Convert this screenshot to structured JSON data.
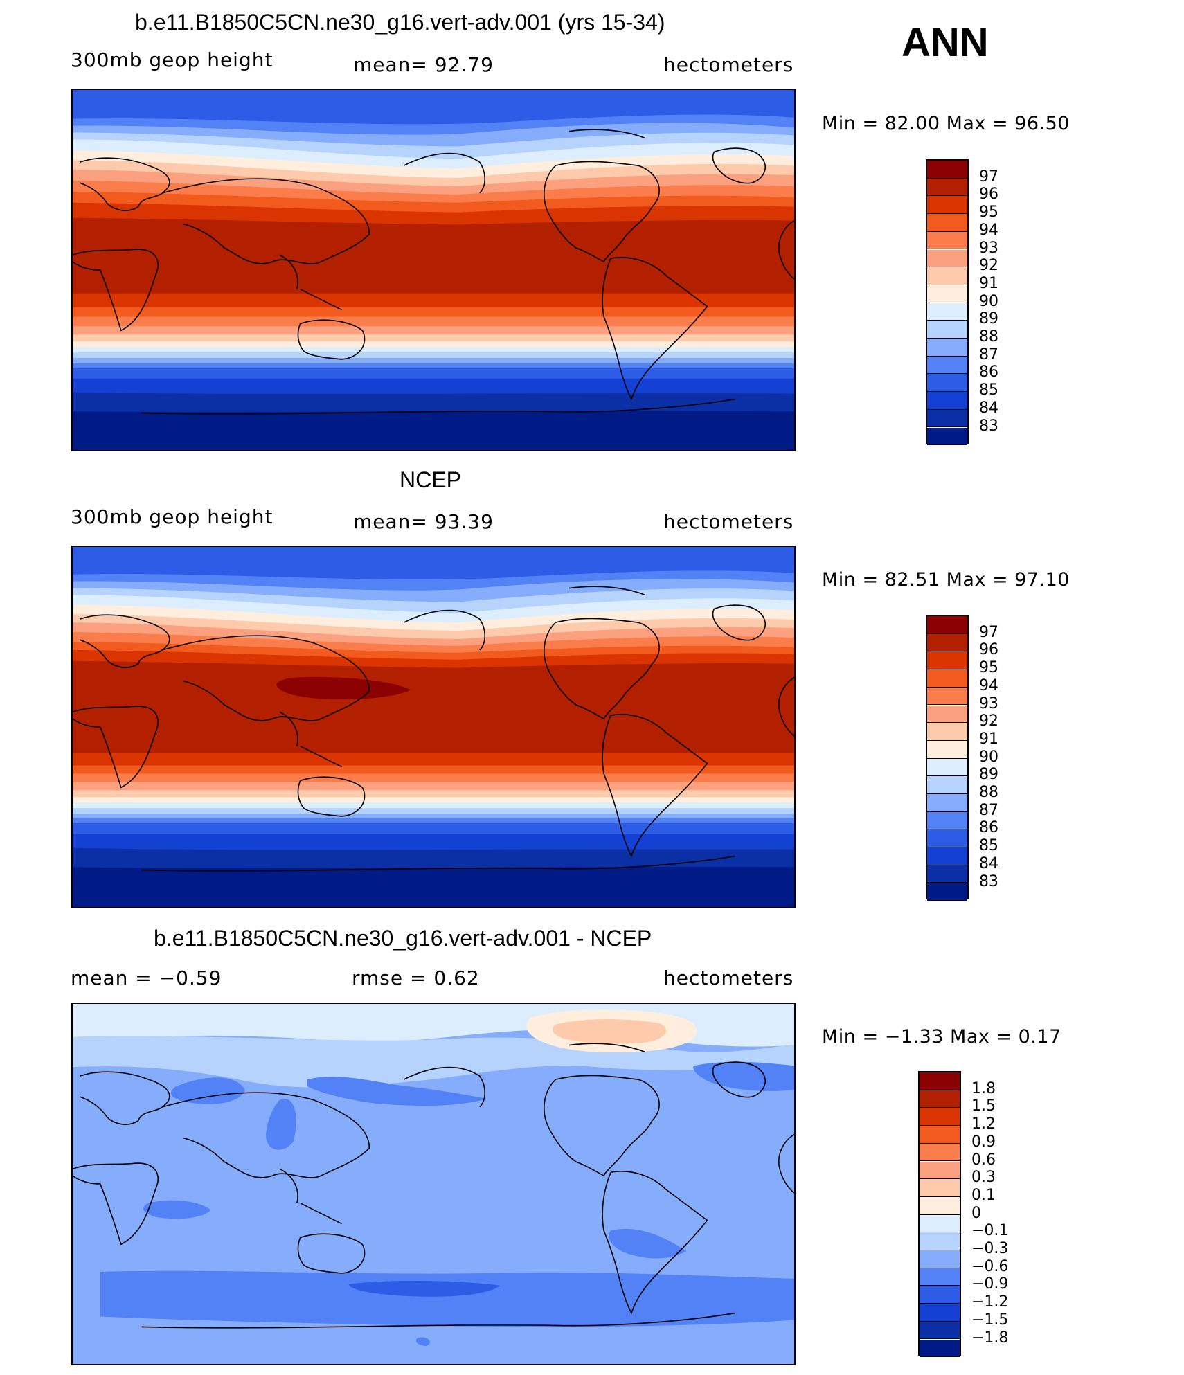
{
  "season": "ANN",
  "panels": [
    {
      "title": "b.e11.B1850C5CN.ne30_g16.vert-adv.001 (yrs 15-34)",
      "left": "300mb geop height",
      "center": "mean=  92.79",
      "right": "hectometers",
      "minmax": "Min =   82.00  Max =   96.50",
      "levels": [
        "97",
        "96",
        "95",
        "94",
        "93",
        "92",
        "91",
        "90",
        "89",
        "88",
        "87",
        "86",
        "85",
        "84",
        "83"
      ],
      "colors": [
        "#8b0000",
        "#b22000",
        "#da3500",
        "#f25a1e",
        "#fb7d4b",
        "#fca180",
        "#fdcaab",
        "#ffeedd",
        "#dceefe",
        "#b5d3fc",
        "#86adfb",
        "#5382f7",
        "#2d5de6",
        "#1441d4",
        "#0b2fa5",
        "#001a86"
      ]
    },
    {
      "title": "NCEP",
      "left": "300mb geop height",
      "center": "mean=  93.39",
      "right": "hectometers",
      "minmax": "Min =   82.51  Max =   97.10",
      "levels": [
        "97",
        "96",
        "95",
        "94",
        "93",
        "92",
        "91",
        "90",
        "89",
        "88",
        "87",
        "86",
        "85",
        "84",
        "83"
      ],
      "colors": [
        "#8b0000",
        "#b22000",
        "#da3500",
        "#f25a1e",
        "#fb7d4b",
        "#fca180",
        "#fdcaab",
        "#ffeedd",
        "#dceefe",
        "#b5d3fc",
        "#86adfb",
        "#5382f7",
        "#2d5de6",
        "#1441d4",
        "#0b2fa5",
        "#001a86"
      ]
    },
    {
      "title": "b.e11.B1850C5CN.ne30_g16.vert-adv.001 - NCEP",
      "left": "mean =   −0.59",
      "center": "rmse =    0.62",
      "right": "hectometers",
      "minmax": "Min =   −1.33  Max =    0.17",
      "levels": [
        "1.8",
        "1.5",
        "1.2",
        "0.9",
        "0.6",
        "0.3",
        "0.1",
        "0",
        "−0.1",
        "−0.3",
        "−0.6",
        "−0.9",
        "−1.2",
        "−1.5",
        "−1.8"
      ],
      "colors": [
        "#8b0000",
        "#b22000",
        "#da3500",
        "#f25a1e",
        "#fb7d4b",
        "#fca180",
        "#fdcaab",
        "#ffeedd",
        "#dceefe",
        "#b5d3fc",
        "#86adfb",
        "#5382f7",
        "#2d5de6",
        "#1441d4",
        "#0b2fa5",
        "#001a86"
      ]
    }
  ]
}
